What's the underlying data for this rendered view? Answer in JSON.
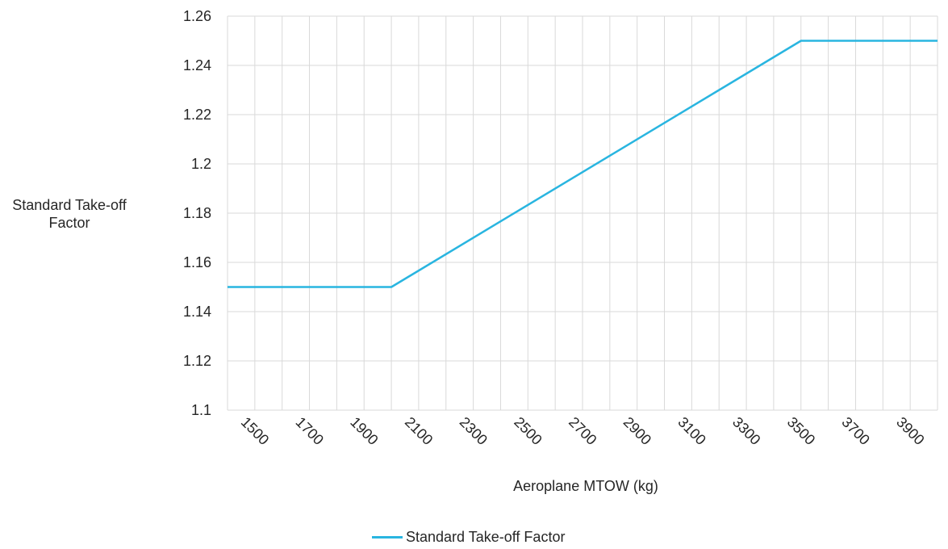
{
  "chart_data": {
    "type": "line",
    "title": "",
    "xlabel": "Aeroplane MTOW (kg)",
    "ylabel": "Standard Take-off Factor",
    "xlim": [
      1400,
      4000
    ],
    "ylim": [
      1.1,
      1.26
    ],
    "y_ticks": [
      "1.1",
      "1.12",
      "1.14",
      "1.16",
      "1.18",
      "1.2",
      "1.22",
      "1.24",
      "1.26"
    ],
    "x_ticks": [
      "1500",
      "1700",
      "1900",
      "2100",
      "2300",
      "2500",
      "2700",
      "2900",
      "3100",
      "3300",
      "3500",
      "3700",
      "3900"
    ],
    "grid": true,
    "legend_position": "bottom",
    "series": [
      {
        "name": "Standard Take-off Factor",
        "color": "#29B5E0",
        "points": [
          [
            1400,
            1.15
          ],
          [
            2000,
            1.15
          ],
          [
            3500,
            1.25
          ],
          [
            4000,
            1.25
          ]
        ]
      }
    ]
  }
}
